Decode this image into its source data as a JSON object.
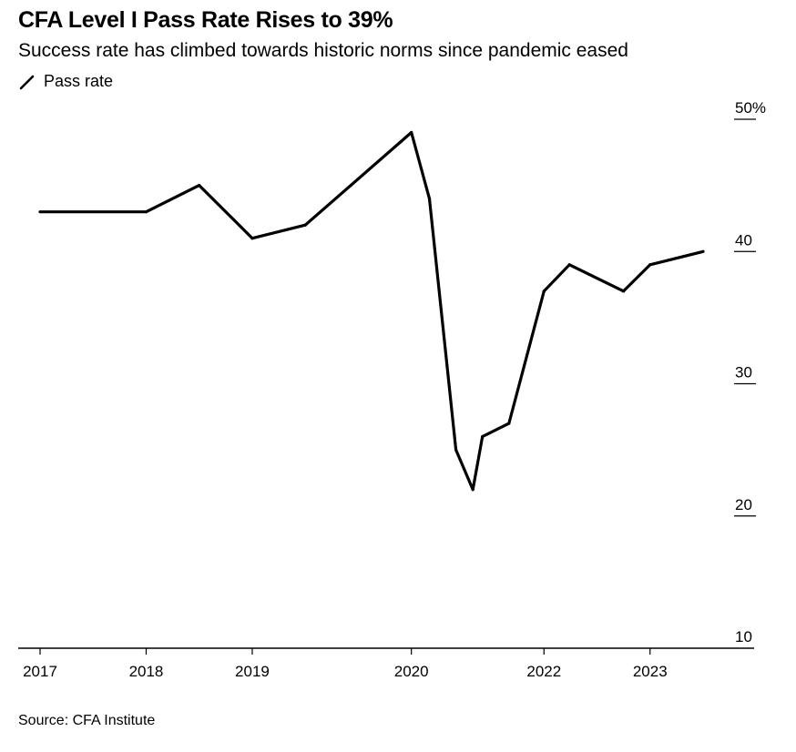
{
  "header": {
    "title": "CFA Level I Pass Rate Rises to 39%",
    "subtitle": "Success rate has climbed towards historic norms since pandemic eased"
  },
  "legend": {
    "series_label": "Pass rate"
  },
  "footer": {
    "source": "Source: CFA Institute"
  },
  "colors": {
    "line": "#000000",
    "axis": "#000000",
    "background": "#ffffff"
  },
  "chart_data": {
    "type": "line",
    "title": "CFA Level I Pass Rate Rises to 39%",
    "subtitle": "Success rate has climbed towards historic norms since pandemic eased",
    "xlabel": "",
    "ylabel": "",
    "xlim": [
      2016.9,
      2023.7
    ],
    "ylim": [
      10,
      50
    ],
    "y_ticks": [
      10,
      20,
      30,
      40,
      50
    ],
    "y_tick_labels": [
      "10",
      "20",
      "30",
      "40",
      "50%"
    ],
    "x_ticks": [
      2017,
      2018,
      2019,
      2020,
      2022,
      2023
    ],
    "x_tick_labels": [
      "2017",
      "2018",
      "2019",
      "2020",
      "2022",
      "2023"
    ],
    "x_tick_positions": [
      2017,
      2018,
      2019,
      2020.5,
      2021.75,
      2022.75
    ],
    "grid": false,
    "legend_position": "top-left",
    "series": [
      {
        "name": "Pass rate",
        "x": [
          2017,
          2018,
          2018.5,
          2019,
          2019.5,
          2020.5,
          2020.67,
          2020.92,
          2021.08,
          2021.17,
          2021.42,
          2021.75,
          2021.99,
          2022.5,
          2022.75,
          2023.25
        ],
        "values": [
          43,
          43,
          45,
          41,
          42,
          49,
          44,
          25,
          22,
          26,
          27,
          37,
          39,
          37,
          39,
          40
        ]
      }
    ]
  }
}
